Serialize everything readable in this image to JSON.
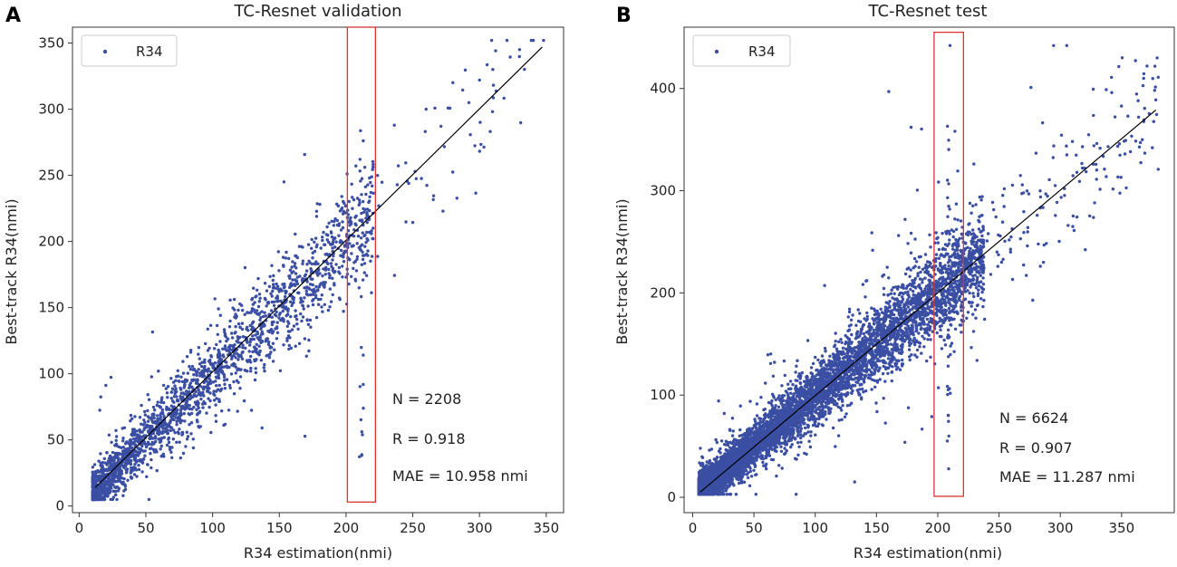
{
  "panels": [
    {
      "letter": "A",
      "title": "TC-Resnet validation",
      "xlabel": "R34 estimation(nmi)",
      "ylabel": "Best-track R34(nmi)",
      "legend": "R34",
      "stats": [
        "N = 2208",
        "R = 0.918",
        "MAE = 10.958 nmi"
      ],
      "x_ticks": [
        "0",
        "50",
        "100",
        "150",
        "200",
        "250",
        "300",
        "350"
      ],
      "y_ticks": [
        "0",
        "50",
        "100",
        "150",
        "200",
        "250",
        "300",
        "350"
      ]
    },
    {
      "letter": "B",
      "title": "TC-Resnet test",
      "xlabel": "R34 estimation(nmi)",
      "ylabel": "Best-track R34(nmi)",
      "legend": "R34",
      "stats": [
        "N = 6624",
        "R = 0.907",
        "MAE = 11.287 nmi"
      ],
      "x_ticks": [
        "0",
        "50",
        "100",
        "150",
        "200",
        "250",
        "300",
        "350"
      ],
      "y_ticks": [
        "0",
        "100",
        "200",
        "300",
        "400"
      ]
    }
  ],
  "chart_data": [
    {
      "type": "scatter",
      "title": "TC-Resnet validation",
      "xlabel": "R34 estimation(nmi)",
      "ylabel": "Best-track R34(nmi)",
      "xlim": [
        -5,
        363
      ],
      "ylim": [
        -5,
        362
      ],
      "x_ticks": [
        0,
        50,
        100,
        150,
        200,
        250,
        300,
        350
      ],
      "y_ticks": [
        0,
        50,
        100,
        150,
        200,
        250,
        300,
        350
      ],
      "series": [
        {
          "name": "R34",
          "color": "#3a4ea3",
          "n": 2208,
          "x_range": [
            10,
            350
          ],
          "y_range": [
            5,
            352
          ]
        }
      ],
      "fit_line": {
        "x": [
          12,
          347
        ],
        "y": [
          14,
          347
        ],
        "color": "#000000"
      },
      "highlight_box": {
        "x": [
          201,
          222
        ],
        "y": [
          3,
          362
        ],
        "color": "#e03030"
      },
      "stats": {
        "N": 2208,
        "R": 0.918,
        "MAE": 10.958
      },
      "legend": "top-left"
    },
    {
      "type": "scatter",
      "title": "TC-Resnet test",
      "xlabel": "R34 estimation(nmi)",
      "ylabel": "Best-track R34(nmi)",
      "xlim": [
        -7,
        393
      ],
      "ylim": [
        -15,
        460
      ],
      "x_ticks": [
        0,
        50,
        100,
        150,
        200,
        250,
        300,
        350
      ],
      "y_ticks": [
        0,
        100,
        200,
        300,
        400
      ],
      "series": [
        {
          "name": "R34",
          "color": "#3a4ea3",
          "n": 6624,
          "x_range": [
            5,
            380
          ],
          "y_range": [
            3,
            442
          ]
        }
      ],
      "fit_line": {
        "x": [
          6,
          378
        ],
        "y": [
          5,
          379
        ],
        "color": "#000000"
      },
      "highlight_box": {
        "x": [
          197,
          221
        ],
        "y": [
          1,
          455
        ],
        "color": "#e03030"
      },
      "stats": {
        "N": 6624,
        "R": 0.907,
        "MAE": 11.287
      },
      "legend": "top-left"
    }
  ]
}
